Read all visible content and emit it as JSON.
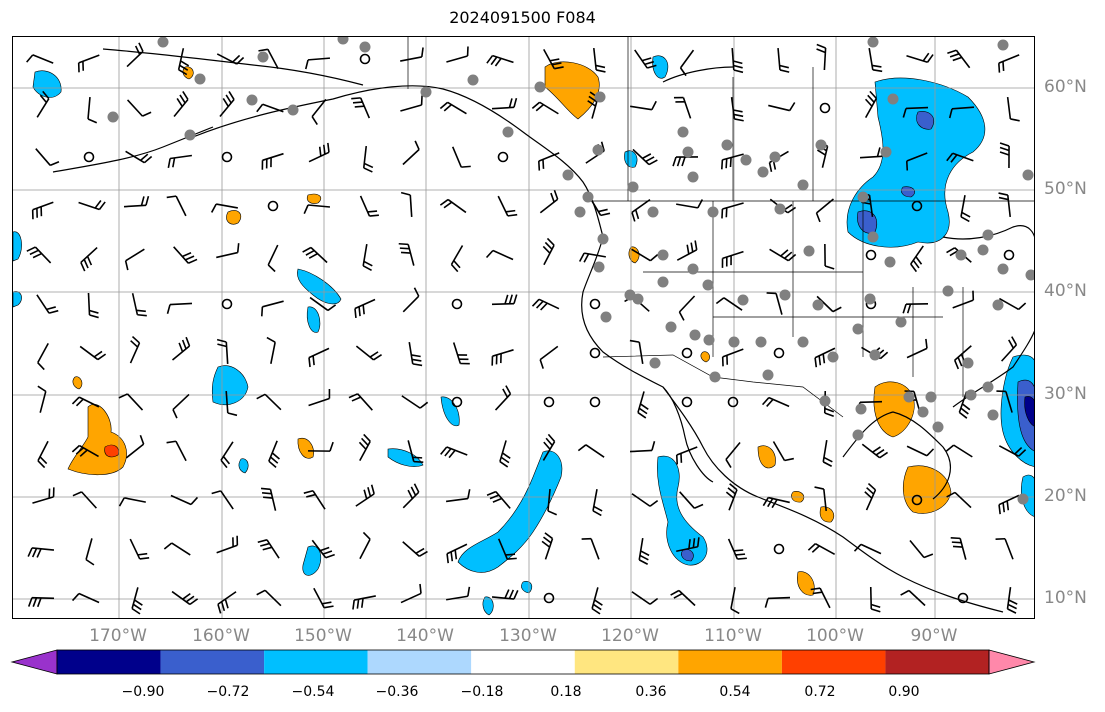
{
  "title": "2024091500 F084",
  "map": {
    "lon_labels": [
      "170°W",
      "160°W",
      "150°W",
      "140°W",
      "130°W",
      "120°W",
      "110°W",
      "100°W",
      "90°W"
    ],
    "lat_labels": [
      "60°N",
      "50°N",
      "40°N",
      "30°N",
      "20°N",
      "10°N"
    ],
    "gridlines": true,
    "features": [
      "coastlines",
      "country-borders",
      "state-borders",
      "wind-barbs",
      "station-markers",
      "shaded-contours"
    ]
  },
  "colorbar": {
    "tick_labels": [
      "−0.90",
      "−0.72",
      "−0.54",
      "−0.36",
      "−0.18",
      "0.18",
      "0.36",
      "0.54",
      "0.72",
      "0.90"
    ],
    "colors": [
      "#9932cc",
      "#00008b",
      "#3a5fcd",
      "#00bfff",
      "#add8fe",
      "#ffffff",
      "#ffe680",
      "#ffa500",
      "#ff4000",
      "#b22222",
      "#ff88aa"
    ]
  }
}
